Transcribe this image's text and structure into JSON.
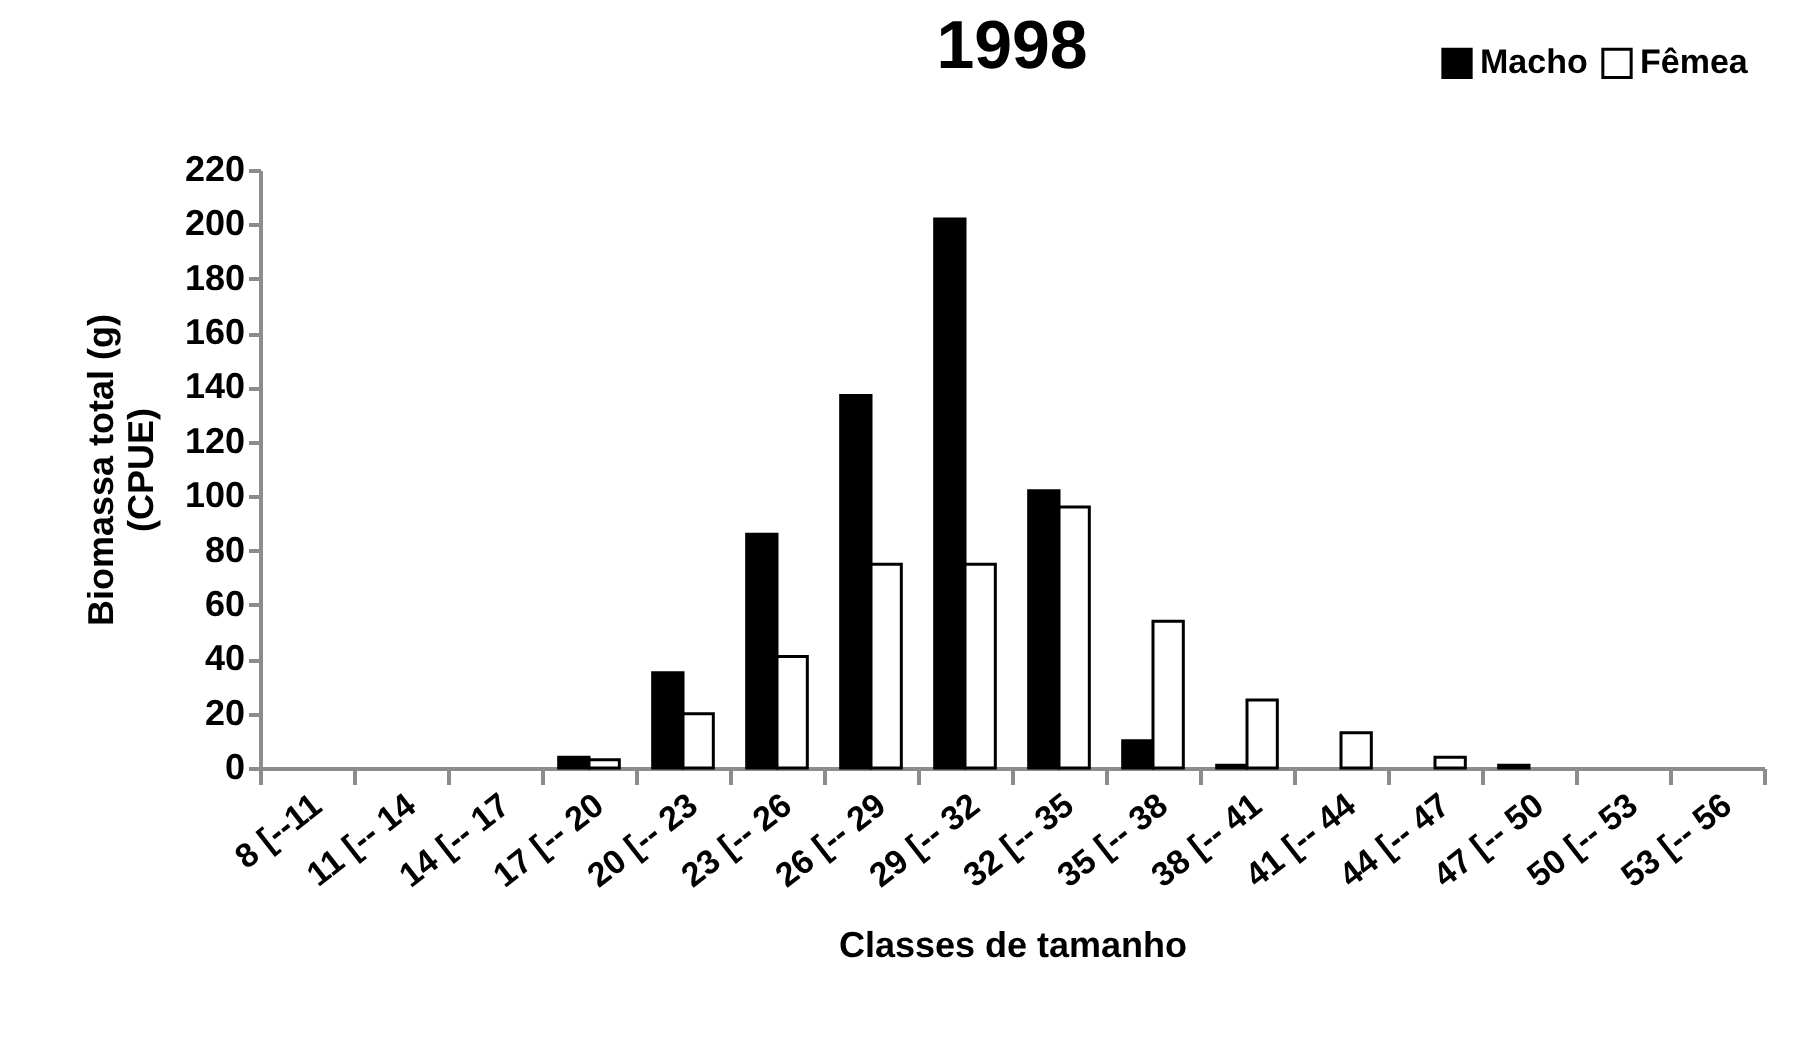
{
  "chart_data": {
    "type": "bar",
    "title": "1998",
    "xlabel": "Classes de tamanho",
    "ylabel": "Biomassa total (g)\n(CPUE)",
    "categories": [
      "8 [--11",
      "11 [-- 14",
      "14 [-- 17",
      "17 [-- 20",
      "20 [-- 23",
      "23 [-- 26",
      "26 [-- 29",
      "29 [-- 32",
      "32 [-- 35",
      "35 [-- 38",
      "38 [-- 41",
      "41 [-- 44",
      "44 [-- 47",
      "47 [-- 50",
      "50 [-- 53",
      "53 [-- 56"
    ],
    "series": [
      {
        "name": "Macho",
        "color": "#000000",
        "values": [
          0,
          0,
          0,
          4,
          35,
          86,
          137,
          202,
          102,
          10,
          1,
          0,
          0,
          1,
          0,
          0
        ]
      },
      {
        "name": "Fêmea",
        "color": "#ffffff",
        "values": [
          0,
          0,
          0,
          3,
          20,
          41,
          75,
          75,
          96,
          54,
          25,
          13,
          4,
          0,
          0,
          0
        ]
      }
    ],
    "ylim": [
      0,
      220
    ],
    "yticks": [
      0,
      20,
      40,
      60,
      80,
      100,
      120,
      140,
      160,
      180,
      200,
      220
    ],
    "grid": false,
    "legend": "top right"
  }
}
